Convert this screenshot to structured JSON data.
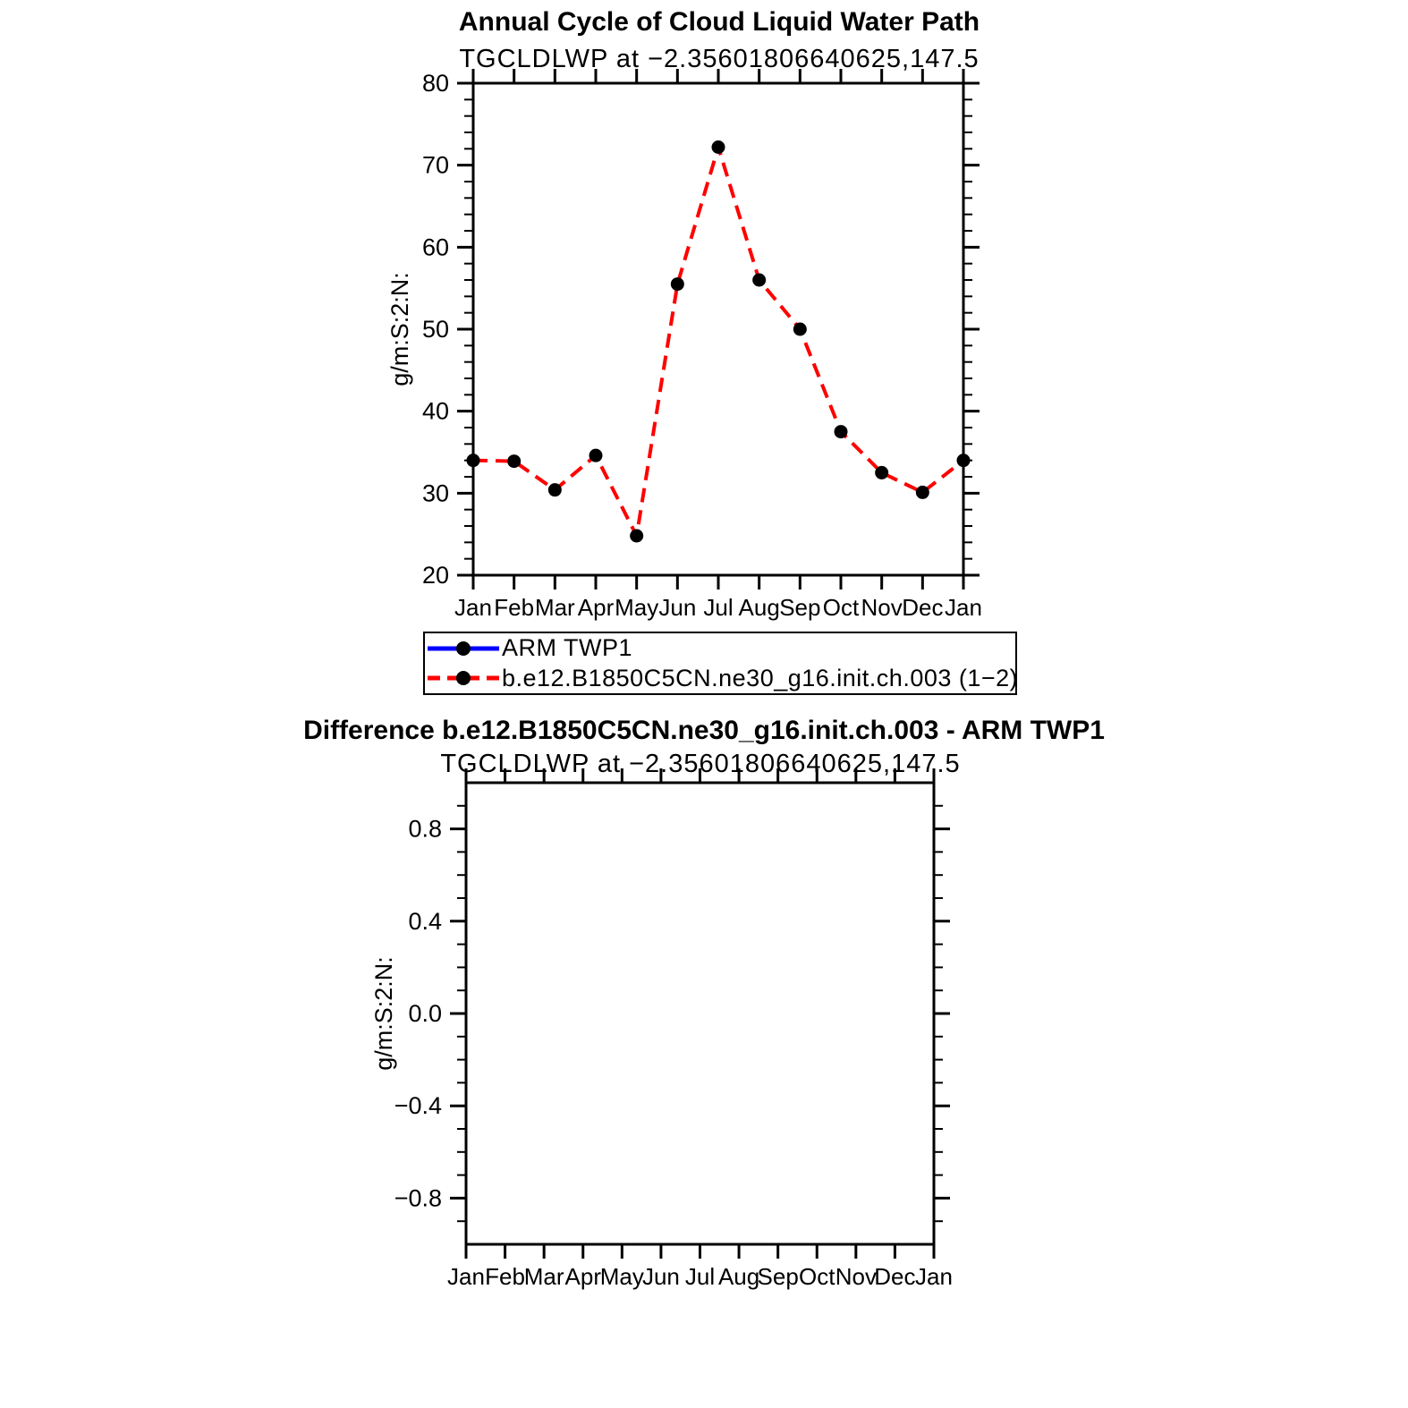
{
  "figure": {
    "background": "#ffffff",
    "axis_color": "#000000",
    "marker_color": "#000000"
  },
  "legend": {
    "entries": [
      {
        "label": "ARM TWP1",
        "line_color": "#0000ff",
        "line_style": "solid",
        "marker": "circle",
        "marker_color": "#000000"
      },
      {
        "label": "b.e12.B1850C5CN.ne30_g16.init.ch.003 (1−2)",
        "line_color": "#ff0000",
        "line_style": "dashed",
        "marker": "circle",
        "marker_color": "#000000"
      }
    ]
  },
  "chart_data": [
    {
      "type": "line",
      "title": "Annual Cycle of Cloud Liquid Water Path",
      "subtitle": "TGCLDLWP at −2.35601806640625,147.5",
      "xlabel": "",
      "ylabel": "g/m:S:2:N:",
      "categories": [
        "Jan",
        "Feb",
        "Mar",
        "Apr",
        "May",
        "Jun",
        "Jul",
        "Aug",
        "Sep",
        "Oct",
        "Nov",
        "Dec",
        "Jan"
      ],
      "ylim": [
        20,
        80
      ],
      "yticks": [
        20,
        30,
        40,
        50,
        60,
        70,
        80
      ],
      "ytick_labels": [
        "20",
        "30",
        "40",
        "50",
        "60",
        "70",
        "80"
      ],
      "yminor_step": 2,
      "grid": false,
      "legend_position": "below",
      "series": [
        {
          "name": "ARM TWP1",
          "color": "#0000ff",
          "style": "solid",
          "marker": "circle",
          "marker_color": "#000000",
          "values": null
        },
        {
          "name": "b.e12.B1850C5CN.ne30_g16.init.ch.003 (1−2)",
          "color": "#ff0000",
          "style": "dashed",
          "marker": "circle",
          "marker_color": "#000000",
          "values": [
            34.0,
            33.9,
            30.4,
            34.6,
            24.8,
            55.5,
            72.2,
            56.0,
            50.0,
            37.5,
            32.5,
            30.1,
            34.0
          ]
        }
      ]
    },
    {
      "type": "line",
      "title": "Difference b.e12.B1850C5CN.ne30_g16.init.ch.003 - ARM TWP1",
      "subtitle": "TGCLDLWP at −2.35601806640625,147.5",
      "xlabel": "",
      "ylabel": "g/m:S:2:N:",
      "categories": [
        "Jan",
        "Feb",
        "Mar",
        "Apr",
        "May",
        "Jun",
        "Jul",
        "Aug",
        "Sep",
        "Oct",
        "Nov",
        "Dec",
        "Jan"
      ],
      "ylim": [
        -1.0,
        1.0
      ],
      "yticks": [
        -0.8,
        -0.4,
        0.0,
        0.4,
        0.8
      ],
      "ytick_labels": [
        "−0.8",
        "−0.4",
        "0.0",
        "0.4",
        "0.8"
      ],
      "yminor_step": 0.1,
      "grid": false,
      "legend_position": "none",
      "series": []
    }
  ]
}
